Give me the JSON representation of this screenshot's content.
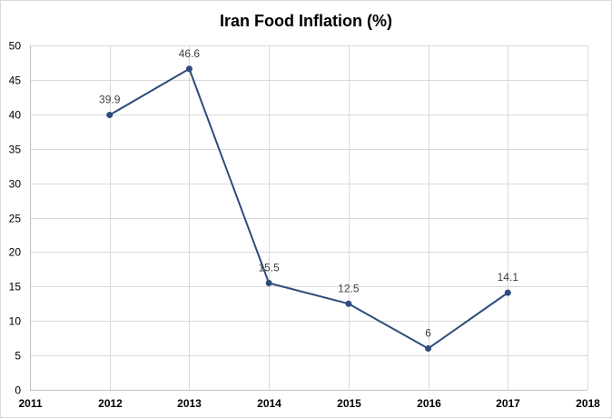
{
  "chart_data": {
    "type": "scatter",
    "title": "Iran Food Inflation (%)",
    "xlabel": "",
    "ylabel": "",
    "xlim": [
      2011,
      2018
    ],
    "ylim": [
      0,
      50
    ],
    "x_ticks": [
      "2011",
      "2012",
      "2013",
      "2014",
      "2015",
      "2016",
      "2017",
      "2018"
    ],
    "y_ticks": [
      "0",
      "5",
      "10",
      "15",
      "20",
      "25",
      "30",
      "35",
      "40",
      "45",
      "50"
    ],
    "grid": true,
    "legend": "none",
    "series": [
      {
        "x": [
          2012,
          2013,
          2014,
          2015,
          2016,
          2017
        ],
        "y": [
          39.9,
          46.6,
          15.5,
          12.5,
          6,
          14.1
        ],
        "labels": [
          "39.9",
          "46.6",
          "15.5",
          "12.5",
          "6",
          "14.1"
        ],
        "color": "#2f4b7c"
      }
    ]
  }
}
